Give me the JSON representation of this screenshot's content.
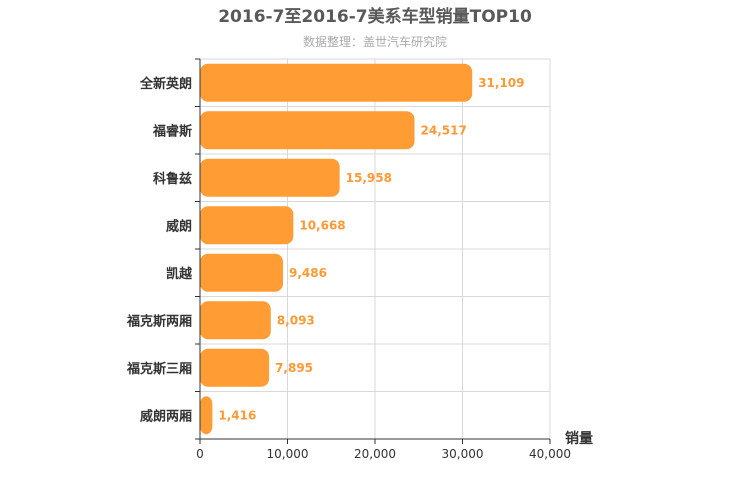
{
  "colors": {
    "bar": "#ff9c33",
    "value_label": "#ff9933",
    "grid": "#d9d9d9",
    "axis": "#333333",
    "title": "#595959",
    "subtitle": "#aaaaaa"
  },
  "chart_data": {
    "type": "bar",
    "orientation": "horizontal",
    "title": "2016-7至2016-7美系车型销量TOP10",
    "subtitle": "数据整理：盖世汽车研究院",
    "xlabel": "销量",
    "ylabel": "",
    "categories": [
      "全新英朗",
      "福睿斯",
      "科鲁兹",
      "威朗",
      "凯越",
      "福克斯两厢",
      "福克斯三厢",
      "威朗两厢"
    ],
    "values": [
      31109,
      24517,
      15958,
      10668,
      9486,
      8093,
      7895,
      1416
    ],
    "value_labels": [
      "31,109",
      "24,517",
      "15,958",
      "10,668",
      "9,486",
      "8,093",
      "7,895",
      "1,416"
    ],
    "xlim": [
      0,
      40000
    ],
    "x_ticks": [
      0,
      10000,
      20000,
      30000,
      40000
    ],
    "x_tick_labels": [
      "0",
      "10,000",
      "20,000",
      "30,000",
      "40,000"
    ],
    "grid": true
  }
}
